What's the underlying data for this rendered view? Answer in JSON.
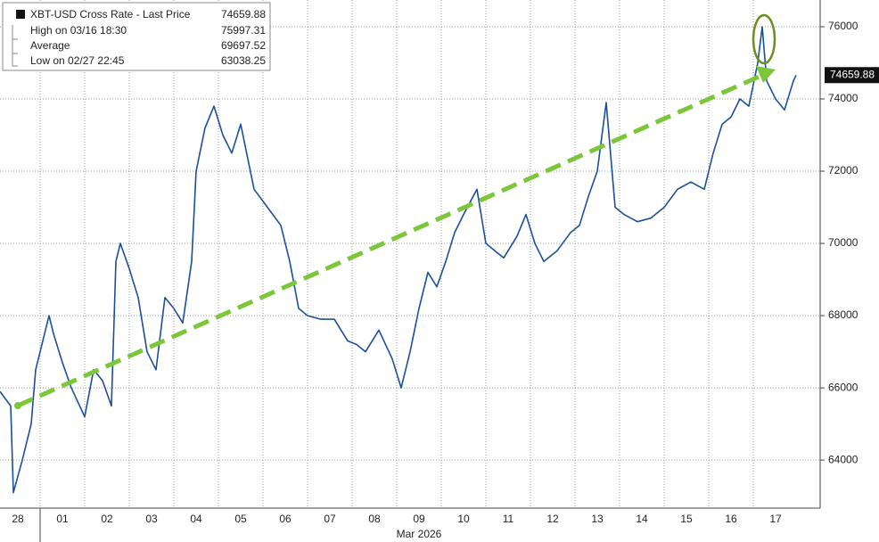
{
  "chart_data": {
    "type": "line",
    "legend": [
      {
        "label": "XBT-USD Cross Rate - Last Price",
        "value": 74659.88
      },
      {
        "label": "High on 03/16 18:30",
        "value": 75997.31
      },
      {
        "label": "Average",
        "value": 69697.52
      },
      {
        "label": "Low on 02/27 22:45",
        "value": 63038.25
      }
    ],
    "x_label": "Mar 2026",
    "x": [
      0.1,
      0.34,
      0.4,
      0.6,
      0.8,
      0.9,
      1.0,
      1.2,
      1.3,
      1.5,
      1.7,
      2.0,
      2.2,
      2.4,
      2.6,
      2.7,
      2.8,
      3.0,
      3.2,
      3.4,
      3.6,
      3.8,
      4.0,
      4.2,
      4.4,
      4.5,
      4.7,
      4.9,
      5.1,
      5.3,
      5.5,
      5.8,
      6.1,
      6.4,
      6.6,
      6.8,
      7.0,
      7.3,
      7.6,
      7.9,
      8.1,
      8.3,
      8.6,
      8.9,
      9.1,
      9.3,
      9.5,
      9.7,
      9.9,
      10.1,
      10.3,
      10.5,
      10.8,
      11.0,
      11.2,
      11.4,
      11.7,
      11.9,
      12.1,
      12.3,
      12.6,
      12.9,
      13.1,
      13.3,
      13.5,
      13.7,
      13.9,
      14.1,
      14.4,
      14.7,
      15.0,
      15.3,
      15.6,
      15.9,
      16.1,
      16.3,
      16.5,
      16.7,
      16.9,
      17.1,
      17.2,
      17.3,
      17.5,
      17.7,
      17.9,
      17.96
    ],
    "series": [
      {
        "name": "XBT-USD Cross Rate",
        "color": "#1a4f9c",
        "values": [
          65900,
          65500,
          63100,
          64000,
          65000,
          66500,
          67000,
          68000,
          67500,
          66700,
          66000,
          65200,
          66500,
          66200,
          65500,
          69500,
          70000,
          69300,
          68500,
          67000,
          66500,
          68500,
          68200,
          67800,
          69500,
          72000,
          73200,
          73800,
          73000,
          72500,
          73300,
          71500,
          71000,
          70500,
          69500,
          68200,
          68000,
          67900,
          67900,
          67300,
          67200,
          67000,
          67600,
          66800,
          66000,
          67000,
          68200,
          69200,
          68800,
          69500,
          70300,
          70800,
          71500,
          70000,
          69800,
          69600,
          70200,
          70800,
          70000,
          69500,
          69800,
          70300,
          70500,
          71300,
          72000,
          73900,
          71000,
          70800,
          70600,
          70700,
          71000,
          71500,
          71700,
          71500,
          72500,
          73300,
          73500,
          74000,
          73800,
          75000,
          76000,
          74500,
          74000,
          73700,
          74500,
          74660
        ]
      }
    ],
    "xlim": [
      0.1,
      18.5
    ],
    "xticks": [
      {
        "value": 0,
        "label": "28"
      },
      {
        "value": 1,
        "label": "01"
      },
      {
        "value": 2,
        "label": "02"
      },
      {
        "value": 3,
        "label": "03"
      },
      {
        "value": 4,
        "label": "04"
      },
      {
        "value": 5,
        "label": "05"
      },
      {
        "value": 6,
        "label": "06"
      },
      {
        "value": 7,
        "label": "07"
      },
      {
        "value": 8,
        "label": "08"
      },
      {
        "value": 9,
        "label": "09"
      },
      10,
      11,
      12,
      13,
      14,
      15,
      16,
      17
    ],
    "ylim": [
      62670,
      76740
    ],
    "yticks": [
      64000,
      66000,
      68000,
      70000,
      72000,
      74000,
      76000
    ],
    "grid": true
  }
}
